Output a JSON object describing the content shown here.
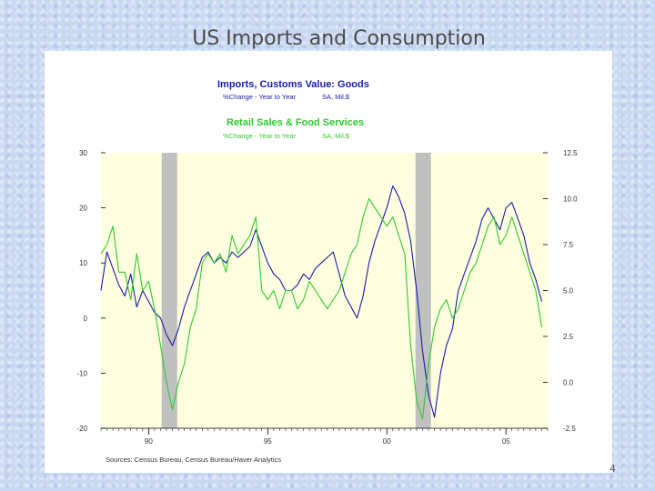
{
  "slide": {
    "title": "US Imports and Consumption",
    "number": "4"
  },
  "chart_data": {
    "type": "line",
    "series": [
      {
        "name": "Imports, Customs Value: Goods",
        "subtitle": "%Change - Year to Year",
        "units": "SA, Mil.$",
        "axis": "left",
        "color": "#1a1aa8",
        "x": [
          1988.0,
          1988.25,
          1988.5,
          1988.75,
          1989.0,
          1989.25,
          1989.5,
          1989.75,
          1990.0,
          1990.25,
          1990.5,
          1990.75,
          1991.0,
          1991.25,
          1991.5,
          1991.75,
          1992.0,
          1992.25,
          1992.5,
          1992.75,
          1993.0,
          1993.25,
          1993.5,
          1993.75,
          1994.0,
          1994.25,
          1994.5,
          1994.75,
          1995.0,
          1995.25,
          1995.5,
          1995.75,
          1996.0,
          1996.25,
          1996.5,
          1996.75,
          1997.0,
          1997.25,
          1997.5,
          1997.75,
          1998.0,
          1998.25,
          1998.5,
          1998.75,
          1999.0,
          1999.25,
          1999.5,
          1999.75,
          2000.0,
          2000.25,
          2000.5,
          2000.75,
          2001.0,
          2001.25,
          2001.5,
          2001.75,
          2002.0,
          2002.25,
          2002.5,
          2002.75,
          2003.0,
          2003.25,
          2003.5,
          2003.75,
          2004.0,
          2004.25,
          2004.5,
          2004.75,
          2005.0,
          2005.25,
          2005.5,
          2005.75,
          2006.0,
          2006.25,
          2006.5
        ],
        "y": [
          5,
          12,
          9,
          6,
          4,
          8,
          2,
          5,
          3,
          1,
          0,
          -3,
          -5,
          -2,
          2,
          5,
          8,
          11,
          12,
          10,
          11,
          10,
          12,
          11,
          12,
          13,
          16,
          13,
          10,
          8,
          7,
          5,
          5,
          6,
          8,
          7,
          9,
          10,
          11,
          12,
          8,
          4,
          2,
          0,
          4,
          10,
          14,
          17,
          20,
          24,
          22,
          19,
          14,
          5,
          -6,
          -14,
          -18,
          -10,
          -5,
          -2,
          5,
          8,
          11,
          14,
          18,
          20,
          18,
          16,
          20,
          21,
          18,
          15,
          10,
          7,
          3
        ]
      },
      {
        "name": "Retail Sales & Food Services",
        "subtitle": "%Change - Year to Year",
        "units": "SA, Mil.$",
        "axis": "right",
        "color": "#2fc82f",
        "x": [
          1988.0,
          1988.25,
          1988.5,
          1988.75,
          1989.0,
          1989.25,
          1989.5,
          1989.75,
          1990.0,
          1990.25,
          1990.5,
          1990.75,
          1991.0,
          1991.25,
          1991.5,
          1991.75,
          1992.0,
          1992.25,
          1992.5,
          1992.75,
          1993.0,
          1993.25,
          1993.5,
          1993.75,
          1994.0,
          1994.25,
          1994.5,
          1994.75,
          1995.0,
          1995.25,
          1995.5,
          1995.75,
          1996.0,
          1996.25,
          1996.5,
          1996.75,
          1997.0,
          1997.25,
          1997.5,
          1997.75,
          1998.0,
          1998.25,
          1998.5,
          1998.75,
          1999.0,
          1999.25,
          1999.5,
          1999.75,
          2000.0,
          2000.25,
          2000.5,
          2000.75,
          2001.0,
          2001.25,
          2001.5,
          2001.75,
          2002.0,
          2002.25,
          2002.5,
          2002.75,
          2003.0,
          2003.25,
          2003.5,
          2003.75,
          2004.0,
          2004.25,
          2004.5,
          2004.75,
          2005.0,
          2005.25,
          2005.5,
          2005.75,
          2006.0,
          2006.25,
          2006.5
        ],
        "y": [
          7,
          7.5,
          8.5,
          6,
          6,
          4.5,
          7,
          5,
          5.5,
          4,
          2,
          0,
          -1.5,
          0,
          1,
          3,
          4,
          6.5,
          7,
          6.5,
          7,
          6,
          8,
          7,
          7.5,
          8,
          9,
          5,
          4.5,
          5,
          4,
          5,
          5,
          4,
          4.5,
          5.5,
          5,
          4.5,
          4,
          4.5,
          5,
          6,
          7,
          7.5,
          9,
          10,
          9.5,
          9,
          8.5,
          9,
          8,
          7,
          2,
          -1,
          -2,
          1,
          3,
          4,
          4.5,
          3.5,
          4,
          5,
          6,
          6.5,
          7.5,
          8.5,
          9,
          7.5,
          8,
          9,
          8,
          7,
          6,
          5,
          3
        ]
      }
    ],
    "left_axis": {
      "range": [
        -20,
        30
      ],
      "ticks": [
        "30",
        "20",
        "10",
        "0",
        "-10",
        "-20"
      ]
    },
    "right_axis": {
      "range": [
        -2.5,
        12.5
      ],
      "ticks": [
        "12.5",
        "10.0",
        "7.5",
        "5.0",
        "2.5",
        "0.0",
        "-2.5"
      ]
    },
    "x_axis": {
      "range": [
        1988,
        2006.75
      ],
      "ticks": [
        {
          "value": 1990,
          "label": "90"
        },
        {
          "value": 1995,
          "label": "95"
        },
        {
          "value": 2000,
          "label": "00"
        },
        {
          "value": 2005,
          "label": "05"
        }
      ]
    },
    "recessions": [
      [
        1990.55,
        1991.2
      ],
      [
        2001.2,
        2001.85
      ]
    ],
    "source": "Sources: Census Bureau, Census Bureau/Haver Analytics",
    "colors": {
      "plot_background": "#ffffe0",
      "recession": "#c0c0c0"
    }
  }
}
